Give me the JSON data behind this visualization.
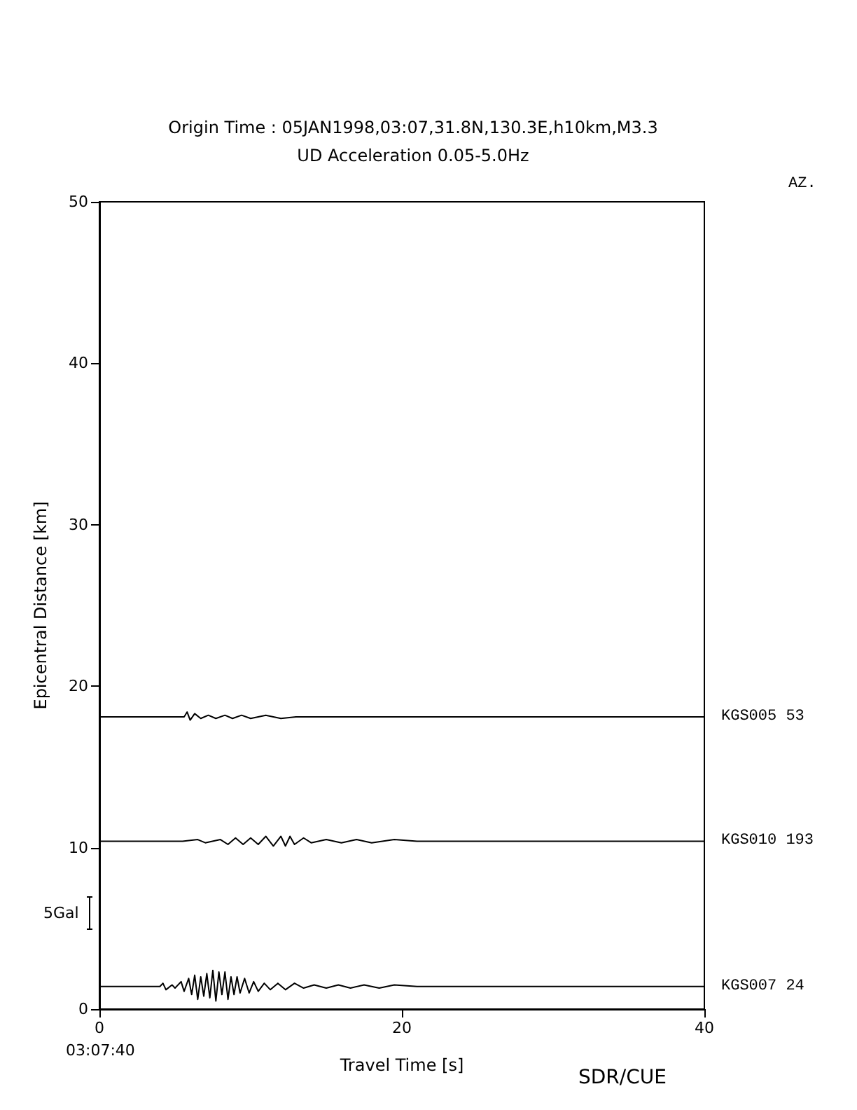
{
  "chart_data": {
    "type": "line",
    "title": "Origin Time : 05JAN1998,03:07,31.8N,130.3E,h10km,M3.3",
    "subtitle": "UD Acceleration 0.05-5.0Hz",
    "xlabel": "Travel Time [s]",
    "ylabel": "Epicentral Distance [km]",
    "xlim": [
      0,
      40
    ],
    "xticks": [
      0,
      20,
      40
    ],
    "ylim": [
      0,
      50
    ],
    "yticks": [
      0,
      10,
      20,
      30,
      40,
      50
    ],
    "grid": false,
    "legend": "right",
    "marker": "none",
    "line_style": "solid",
    "annotations": [
      "03:07:40",
      "5Gal",
      "AZ.",
      "SDR/CUE"
    ],
    "series": [
      {
        "name": "KGS005 53",
        "color": "#000000",
        "x": [
          0,
          5.6,
          5.8,
          6.0,
          6.3,
          6.7,
          7.2,
          7.7,
          8.3,
          8.8,
          9.4,
          10,
          11,
          12,
          13,
          14,
          16,
          40
        ],
        "values": [
          18.1,
          18.1,
          18.4,
          17.9,
          18.3,
          18.0,
          18.2,
          18.0,
          18.2,
          18.0,
          18.2,
          18.0,
          18.2,
          18.0,
          18.1,
          18.1,
          18.1,
          18.1
        ]
      },
      {
        "name": "KGS010 193",
        "color": "#000000",
        "x": [
          0,
          5.5,
          6.5,
          7,
          8,
          8.5,
          9,
          9.5,
          10,
          10.5,
          11,
          11.5,
          12,
          12.3,
          12.6,
          12.9,
          13.5,
          14,
          15,
          16,
          17,
          18,
          19.5,
          21,
          23,
          25,
          28,
          32,
          40
        ],
        "values": [
          10.4,
          10.4,
          10.5,
          10.3,
          10.5,
          10.2,
          10.6,
          10.2,
          10.6,
          10.2,
          10.7,
          10.1,
          10.7,
          10.1,
          10.7,
          10.2,
          10.6,
          10.3,
          10.5,
          10.3,
          10.5,
          10.3,
          10.5,
          10.4,
          10.4,
          10.4,
          10.4,
          10.4,
          10.4
        ]
      },
      {
        "name": "KGS007 24",
        "color": "#000000",
        "x": [
          0,
          4.0,
          4.2,
          4.4,
          4.8,
          5.0,
          5.4,
          5.6,
          5.9,
          6.1,
          6.3,
          6.5,
          6.7,
          6.9,
          7.1,
          7.3,
          7.5,
          7.7,
          7.9,
          8.1,
          8.3,
          8.5,
          8.7,
          8.9,
          9.1,
          9.3,
          9.6,
          9.9,
          10.2,
          10.5,
          10.9,
          11.3,
          11.8,
          12.3,
          12.9,
          13.5,
          14.2,
          15.0,
          15.8,
          16.6,
          17.5,
          18.5,
          19.5,
          21,
          23,
          25,
          28,
          31,
          35,
          40
        ],
        "values": [
          1.4,
          1.4,
          1.6,
          1.2,
          1.5,
          1.3,
          1.7,
          1.1,
          1.9,
          0.9,
          2.1,
          0.6,
          2.0,
          0.8,
          2.2,
          0.7,
          2.4,
          0.5,
          2.3,
          0.9,
          2.3,
          0.6,
          2.0,
          0.9,
          2.0,
          1.0,
          1.9,
          1.0,
          1.7,
          1.1,
          1.6,
          1.2,
          1.6,
          1.2,
          1.6,
          1.3,
          1.5,
          1.3,
          1.5,
          1.3,
          1.5,
          1.3,
          1.5,
          1.4,
          1.4,
          1.4,
          1.4,
          1.4,
          1.4,
          1.4
        ]
      }
    ]
  }
}
